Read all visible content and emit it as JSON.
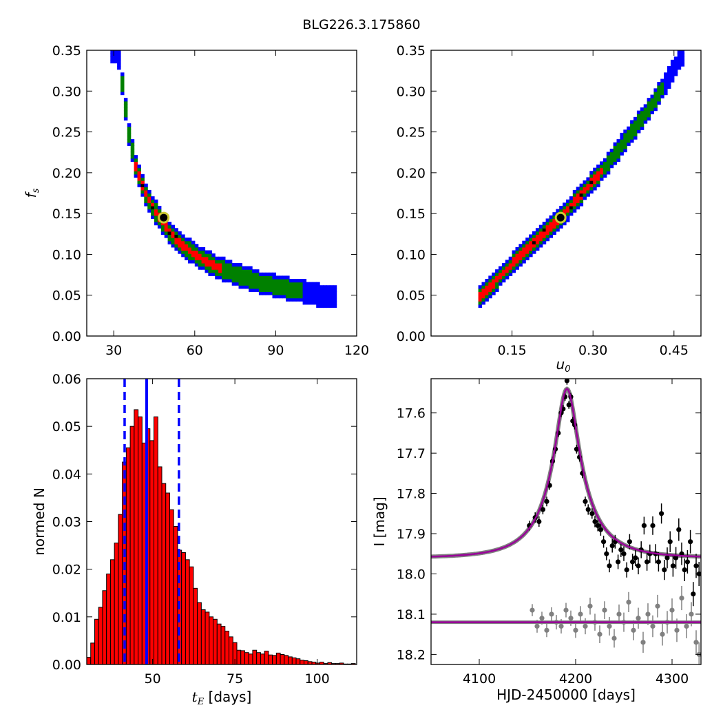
{
  "figure": {
    "title": "BLG226.3.175860"
  },
  "chart_data": [
    {
      "type": "heatmap",
      "panel": "tE-fs",
      "ylabel_main": "f",
      "ylabel_sub": "s",
      "xlabel": "",
      "xlim": [
        20,
        120
      ],
      "ylim": [
        0,
        0.35
      ],
      "xticks": [
        30,
        60,
        90,
        120
      ],
      "xtick_labels": [
        "30",
        "60",
        "90",
        "120"
      ],
      "yticks": [
        0,
        0.05,
        0.1,
        0.15,
        0.2,
        0.25,
        0.3,
        0.35
      ],
      "ytick_labels": [
        "0.00",
        "0.05",
        "0.10",
        "0.15",
        "0.20",
        "0.25",
        "0.30",
        "0.35"
      ],
      "region_colors": {
        "outer": "#0000ff",
        "middle": "#008000",
        "inner": "#ff0000",
        "core": "#000000"
      },
      "best_fit": {
        "x": 48.5,
        "y": 0.145
      },
      "ridge": [
        [
          31.5,
          0.35
        ],
        [
          33.5,
          0.3
        ],
        [
          35.5,
          0.25
        ],
        [
          38,
          0.21
        ],
        [
          41,
          0.18
        ],
        [
          45,
          0.155
        ],
        [
          50,
          0.13
        ],
        [
          55,
          0.113
        ],
        [
          60,
          0.1
        ],
        [
          68,
          0.085
        ],
        [
          76,
          0.075
        ],
        [
          85,
          0.065
        ],
        [
          95,
          0.058
        ],
        [
          105,
          0.051
        ],
        [
          112,
          0.047
        ]
      ],
      "widths": {
        "outer": 0.014,
        "middle": 0.01,
        "inner": 0.005
      },
      "inner_range": [
        37,
        70
      ],
      "middle_range": [
        32,
        100
      ],
      "outer_range": [
        29,
        112
      ]
    },
    {
      "type": "heatmap",
      "panel": "u0-fs",
      "xlabel_main": "u",
      "xlabel_sub": "0",
      "ylabel": "",
      "xlim": [
        0,
        0.5
      ],
      "ylim": [
        0,
        0.35
      ],
      "xticks": [
        0.15,
        0.3,
        0.45
      ],
      "xtick_labels": [
        "0.15",
        "0.30",
        "0.45"
      ],
      "yticks": [
        0,
        0.05,
        0.1,
        0.15,
        0.2,
        0.25,
        0.3,
        0.35
      ],
      "ytick_labels": [
        "0.00",
        "0.05",
        "0.10",
        "0.15",
        "0.20",
        "0.25",
        "0.30",
        "0.35"
      ],
      "region_colors": {
        "outer": "#0000ff",
        "middle": "#008000",
        "inner": "#ff0000",
        "core": "#000000"
      },
      "best_fit": {
        "x": 0.24,
        "y": 0.145
      },
      "ridge": [
        [
          0.088,
          0.047
        ],
        [
          0.12,
          0.068
        ],
        [
          0.16,
          0.095
        ],
        [
          0.2,
          0.12
        ],
        [
          0.24,
          0.145
        ],
        [
          0.28,
          0.175
        ],
        [
          0.32,
          0.205
        ],
        [
          0.36,
          0.24
        ],
        [
          0.4,
          0.275
        ],
        [
          0.43,
          0.305
        ],
        [
          0.47,
          0.35
        ]
      ],
      "widths": {
        "outer": 0.013,
        "middle": 0.009,
        "inner": 0.005
      },
      "inner_range": [
        0.09,
        0.32
      ],
      "middle_range": [
        0.09,
        0.43
      ],
      "outer_range": [
        0.09,
        0.47
      ]
    },
    {
      "type": "bar",
      "panel": "tE-histogram",
      "xlabel_main": "t",
      "xlabel_sub": "E",
      "xlabel_unit": "[days]",
      "ylabel": "normed N",
      "xlim": [
        30,
        112
      ],
      "ylim": [
        0,
        0.06
      ],
      "xticks": [
        50,
        75,
        100
      ],
      "xtick_labels": [
        "50",
        "75",
        "100"
      ],
      "yticks": [
        0,
        0.01,
        0.02,
        0.03,
        0.04,
        0.05,
        0.06
      ],
      "ytick_labels": [
        "0.00",
        "0.01",
        "0.02",
        "0.03",
        "0.04",
        "0.05",
        "0.06"
      ],
      "bin_start": 30,
      "bin_width": 1.2,
      "values": [
        0.0015,
        0.0045,
        0.0095,
        0.012,
        0.0155,
        0.019,
        0.022,
        0.0255,
        0.0315,
        0.0425,
        0.0455,
        0.05,
        0.0535,
        0.052,
        0.0465,
        0.0495,
        0.047,
        0.052,
        0.0415,
        0.038,
        0.036,
        0.0325,
        0.029,
        0.024,
        0.0235,
        0.022,
        0.0205,
        0.016,
        0.013,
        0.0115,
        0.011,
        0.01,
        0.0095,
        0.0085,
        0.008,
        0.007,
        0.0058,
        0.0046,
        0.003,
        0.0029,
        0.0025,
        0.0022,
        0.003,
        0.0025,
        0.0022,
        0.0028,
        0.002,
        0.0019,
        0.0024,
        0.0021,
        0.0019,
        0.0016,
        0.0014,
        0.0012,
        0.0009,
        0.0008,
        0.0006,
        0.0005,
        0.0003,
        0.0005,
        0.0002,
        0.0004,
        0.0002,
        0.0002,
        0.0003,
        0.0001,
        0.0001,
        0.0002
      ],
      "bar_color": "#ff0000",
      "median_line": {
        "x": 48.2,
        "color": "#0000ff"
      },
      "bound_lines": {
        "x": [
          41.5,
          58.0
        ],
        "color": "#0000ff"
      }
    },
    {
      "type": "scatter",
      "panel": "light-curve",
      "xlabel": "HJD-2450000 [days]",
      "ylabel": "I [mag]",
      "xlim": [
        4050,
        4330
      ],
      "ylim": [
        18.225,
        17.515
      ],
      "xticks": [
        4100,
        4200,
        4300
      ],
      "xtick_labels": [
        "4100",
        "4200",
        "4300"
      ],
      "yticks": [
        17.6,
        17.7,
        17.8,
        17.9,
        18.0,
        18.1,
        18.2
      ],
      "ytick_labels": [
        "17.6",
        "17.7",
        "17.8",
        "17.9",
        "18.0",
        "18.1",
        "18.2"
      ],
      "model": {
        "t0": 4191,
        "tE": 48.5,
        "u0": 0.24,
        "fs": 0.145,
        "baseline": 17.96,
        "color": "#990099"
      },
      "residual_offset": 18.12,
      "series": [
        {
          "name": "",
          "color": "#000000",
          "x": [
            4152,
            4158,
            4162,
            4166,
            4170,
            4173,
            4176,
            4179,
            4182,
            4185,
            4187,
            4189,
            4191,
            4193,
            4195,
            4197,
            4199,
            4201,
            4204,
            4207,
            4210,
            4213,
            4217,
            4220,
            4223,
            4226,
            4229,
            4232,
            4235,
            4238,
            4241,
            4244,
            4247,
            4250,
            4253,
            4256,
            4259,
            4262,
            4265,
            4268,
            4271,
            4274,
            4277,
            4280,
            4283,
            4286,
            4289,
            4292,
            4295,
            4298,
            4301,
            4304,
            4307,
            4310,
            4313,
            4316,
            4319,
            4322,
            4325,
            4328
          ],
          "y": [
            17.88,
            17.86,
            17.87,
            17.84,
            17.82,
            17.78,
            17.72,
            17.69,
            17.65,
            17.6,
            17.59,
            17.56,
            17.52,
            17.58,
            17.56,
            17.62,
            17.63,
            17.69,
            17.71,
            17.75,
            17.82,
            17.84,
            17.85,
            17.87,
            17.88,
            17.89,
            17.92,
            17.95,
            17.98,
            17.93,
            17.92,
            17.97,
            17.94,
            17.95,
            17.99,
            17.92,
            17.97,
            17.96,
            17.98,
            17.94,
            17.88,
            17.97,
            17.95,
            17.88,
            17.95,
            17.97,
            17.85,
            17.99,
            17.96,
            17.92,
            17.98,
            17.96,
            17.89,
            17.95,
            17.99,
            17.97,
            17.92,
            18.05,
            17.98,
            18.0
          ],
          "yerr": [
            0.012,
            0.013,
            0.013,
            0.012,
            0.012,
            0.011,
            0.011,
            0.011,
            0.01,
            0.01,
            0.01,
            0.01,
            0.01,
            0.01,
            0.01,
            0.01,
            0.011,
            0.011,
            0.011,
            0.012,
            0.012,
            0.013,
            0.013,
            0.014,
            0.014,
            0.015,
            0.015,
            0.016,
            0.016,
            0.017,
            0.017,
            0.018,
            0.018,
            0.018,
            0.019,
            0.019,
            0.02,
            0.02,
            0.021,
            0.021,
            0.022,
            0.022,
            0.023,
            0.023,
            0.024,
            0.024,
            0.025,
            0.025,
            0.026,
            0.026,
            0.027,
            0.027,
            0.028,
            0.028,
            0.028,
            0.029,
            0.029,
            0.03,
            0.03,
            0.03
          ]
        },
        {
          "name": "",
          "color": "#808080",
          "x": [
            4155,
            4160,
            4165,
            4170,
            4175,
            4180,
            4185,
            4190,
            4195,
            4200,
            4205,
            4210,
            4215,
            4220,
            4225,
            4230,
            4235,
            4240,
            4245,
            4250,
            4255,
            4260,
            4265,
            4270,
            4275,
            4280,
            4285,
            4290,
            4295,
            4300,
            4305,
            4310,
            4315,
            4320,
            4325,
            4328
          ],
          "y": [
            18.09,
            18.13,
            18.11,
            18.14,
            18.1,
            18.12,
            18.13,
            18.09,
            18.11,
            18.14,
            18.1,
            18.13,
            18.08,
            18.12,
            18.15,
            18.09,
            18.13,
            18.16,
            18.1,
            18.12,
            18.07,
            18.14,
            18.11,
            18.17,
            18.1,
            18.13,
            18.08,
            18.15,
            18.12,
            18.09,
            18.14,
            18.06,
            18.13,
            18.1,
            18.17,
            18.2
          ],
          "yerr": [
            0.015,
            0.016,
            0.016,
            0.017,
            0.017,
            0.018,
            0.018,
            0.018,
            0.019,
            0.019,
            0.02,
            0.02,
            0.021,
            0.021,
            0.022,
            0.022,
            0.023,
            0.023,
            0.024,
            0.024,
            0.025,
            0.025,
            0.026,
            0.026,
            0.027,
            0.027,
            0.028,
            0.028,
            0.028,
            0.029,
            0.029,
            0.03,
            0.03,
            0.03,
            0.03,
            0.03
          ]
        }
      ]
    }
  ]
}
